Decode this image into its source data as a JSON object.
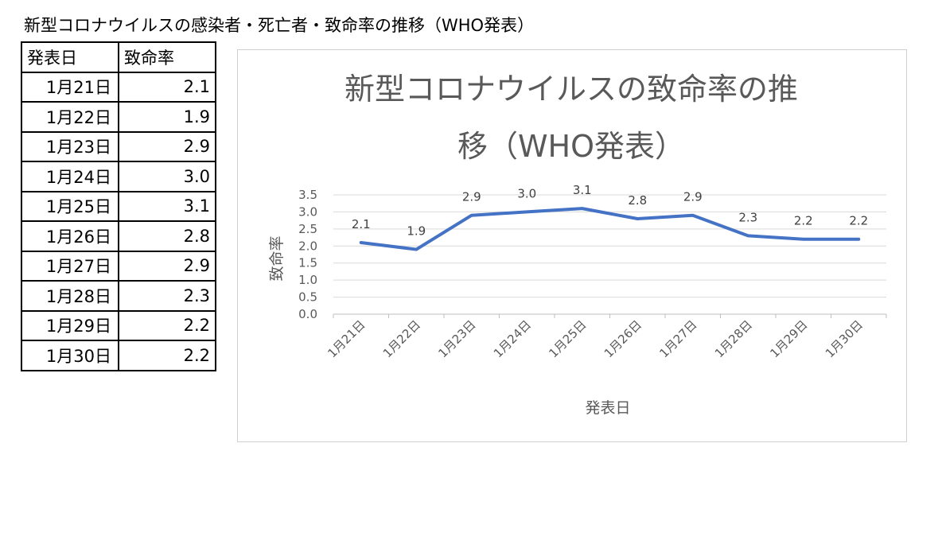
{
  "page_title": "新型コロナウイルスの感染者・死亡者・致命率の推移（WHO発表）",
  "table": {
    "headers": [
      "発表日",
      "致命率"
    ],
    "rows": [
      [
        "1月21日",
        "2.1"
      ],
      [
        "1月22日",
        "1.9"
      ],
      [
        "1月23日",
        "2.9"
      ],
      [
        "1月24日",
        "3.0"
      ],
      [
        "1月25日",
        "3.1"
      ],
      [
        "1月26日",
        "2.8"
      ],
      [
        "1月27日",
        "2.9"
      ],
      [
        "1月28日",
        "2.3"
      ],
      [
        "1月29日",
        "2.2"
      ],
      [
        "1月30日",
        "2.2"
      ]
    ]
  },
  "chart_data": {
    "type": "line",
    "title_lines": [
      "新型コロナウイルスの致命率の推",
      "移（WHO発表）"
    ],
    "xlabel": "発表日",
    "ylabel": "致命率",
    "categories": [
      "1月21日",
      "1月22日",
      "1月23日",
      "1月24日",
      "1月25日",
      "1月26日",
      "1月27日",
      "1月28日",
      "1月29日",
      "1月30日"
    ],
    "series": [
      {
        "values": [
          2.1,
          1.9,
          2.9,
          3.0,
          3.1,
          2.8,
          2.9,
          2.3,
          2.2,
          2.2
        ],
        "color": "#4472C4"
      }
    ],
    "data_labels": [
      "2.1",
      "1.9",
      "2.9",
      "3.0",
      "3.1",
      "2.8",
      "2.9",
      "2.3",
      "2.2",
      "2.2"
    ],
    "y_ticks": [
      "0.0",
      "0.5",
      "1.0",
      "1.5",
      "2.0",
      "2.5",
      "3.0",
      "3.5"
    ],
    "ylim": [
      0,
      3.5
    ],
    "grid": true,
    "legend": "none"
  }
}
